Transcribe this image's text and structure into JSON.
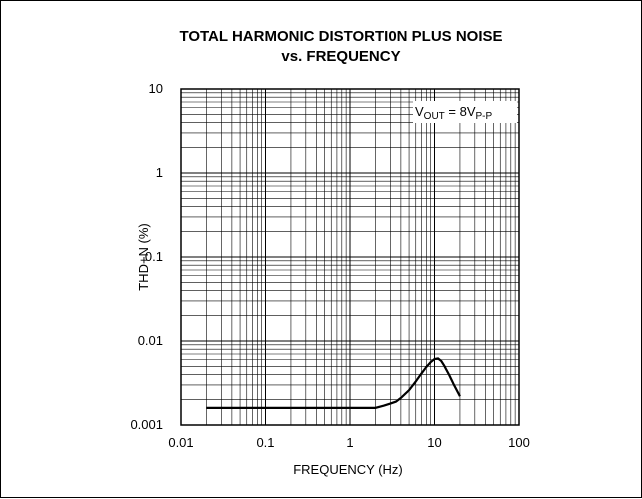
{
  "chart_data": {
    "type": "line",
    "title": "TOTAL HARMONIC DISTORTI0N PLUS NOISE",
    "subtitle": "vs. FREQUENCY",
    "xlabel": "FREQUENCY (Hz)",
    "ylabel": "THD+N (%)",
    "x_scale": "log",
    "y_scale": "log",
    "xlim": [
      0.01,
      100
    ],
    "ylim": [
      0.001,
      10
    ],
    "x_ticks": [
      "0.01",
      "0.1",
      "1",
      "10",
      "100"
    ],
    "y_ticks": [
      "0.001",
      "0.01",
      "0.1",
      "1",
      "10"
    ],
    "grid": true,
    "annotation": {
      "main": "V",
      "sub": "OUT",
      "rest": " = 8V",
      "sub2": "P-P"
    },
    "series": [
      {
        "x": [
          0.02,
          0.03,
          0.05,
          0.07,
          0.1,
          0.15,
          0.2,
          0.3,
          0.5,
          0.7,
          1,
          1.5,
          2,
          2.5,
          3,
          3.5,
          4,
          5,
          6,
          7,
          8,
          9,
          10,
          11,
          12,
          13,
          15,
          17,
          20
        ],
        "y": [
          0.0016,
          0.0016,
          0.0016,
          0.0016,
          0.0016,
          0.0016,
          0.0016,
          0.0016,
          0.0016,
          0.0016,
          0.0016,
          0.0016,
          0.0016,
          0.0017,
          0.0018,
          0.0019,
          0.0021,
          0.0026,
          0.0033,
          0.0041,
          0.0049,
          0.0056,
          0.0061,
          0.0062,
          0.0058,
          0.0051,
          0.0039,
          0.003,
          0.0022
        ]
      }
    ]
  }
}
